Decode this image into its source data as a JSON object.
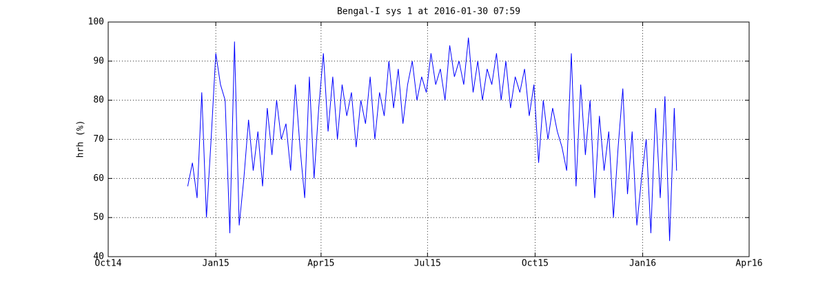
{
  "chart_data": {
    "type": "line",
    "title": "Bengal-I sys 1 at 2016-01-30 07:59",
    "y_label": "hrh (%)",
    "x": [
      "2014-12-08",
      "2014-12-12",
      "2014-12-16",
      "2014-12-20",
      "2014-12-24",
      "2014-12-28",
      "2015-01-01",
      "2015-01-05",
      "2015-01-09",
      "2015-01-13",
      "2015-01-17",
      "2015-01-21",
      "2015-01-25",
      "2015-01-29",
      "2015-02-02",
      "2015-02-06",
      "2015-02-10",
      "2015-02-14",
      "2015-02-18",
      "2015-02-22",
      "2015-02-26",
      "2015-03-02",
      "2015-03-06",
      "2015-03-10",
      "2015-03-14",
      "2015-03-18",
      "2015-03-22",
      "2015-03-26",
      "2015-03-30",
      "2015-04-03",
      "2015-04-07",
      "2015-04-11",
      "2015-04-15",
      "2015-04-19",
      "2015-04-23",
      "2015-04-27",
      "2015-05-01",
      "2015-05-05",
      "2015-05-09",
      "2015-05-13",
      "2015-05-17",
      "2015-05-21",
      "2015-05-25",
      "2015-05-29",
      "2015-06-02",
      "2015-06-06",
      "2015-06-10",
      "2015-06-14",
      "2015-06-18",
      "2015-06-22",
      "2015-06-26",
      "2015-06-30",
      "2015-07-04",
      "2015-07-08",
      "2015-07-12",
      "2015-07-16",
      "2015-07-20",
      "2015-07-24",
      "2015-07-28",
      "2015-08-01",
      "2015-08-05",
      "2015-08-09",
      "2015-08-13",
      "2015-08-17",
      "2015-08-21",
      "2015-08-25",
      "2015-08-29",
      "2015-09-02",
      "2015-09-06",
      "2015-09-10",
      "2015-09-14",
      "2015-09-18",
      "2015-09-22",
      "2015-09-26",
      "2015-09-30",
      "2015-10-04",
      "2015-10-08",
      "2015-10-12",
      "2015-10-16",
      "2015-10-20",
      "2015-10-24",
      "2015-10-28",
      "2015-11-01",
      "2015-11-05",
      "2015-11-09",
      "2015-11-13",
      "2015-11-17",
      "2015-11-21",
      "2015-11-25",
      "2015-11-29",
      "2015-12-03",
      "2015-12-07",
      "2015-12-11",
      "2015-12-15",
      "2015-12-19",
      "2015-12-23",
      "2015-12-27",
      "2015-12-31",
      "2016-01-04",
      "2016-01-08",
      "2016-01-12",
      "2016-01-16",
      "2016-01-20",
      "2016-01-24",
      "2016-01-28",
      "2016-01-30"
    ],
    "series": [
      {
        "name": "hrh",
        "color": "#0000ff",
        "values": [
          58,
          64,
          55,
          82,
          50,
          70,
          92,
          84,
          80,
          46,
          95,
          48,
          60,
          75,
          62,
          72,
          58,
          78,
          66,
          80,
          70,
          74,
          62,
          84,
          68,
          55,
          86,
          60,
          78,
          92,
          72,
          86,
          70,
          84,
          76,
          82,
          68,
          80,
          74,
          86,
          70,
          82,
          76,
          90,
          78,
          88,
          74,
          84,
          90,
          80,
          86,
          82,
          92,
          84,
          88,
          80,
          94,
          86,
          90,
          84,
          96,
          82,
          90,
          80,
          88,
          84,
          92,
          80,
          90,
          78,
          86,
          82,
          88,
          76,
          84,
          64,
          80,
          70,
          78,
          72,
          68,
          62,
          92,
          58,
          84,
          66,
          80,
          55,
          76,
          62,
          72,
          50,
          68,
          83,
          56,
          72,
          48,
          60,
          70,
          46,
          78,
          55,
          81,
          44,
          78,
          62
        ]
      }
    ],
    "xlim": [
      "2014-10-01",
      "2016-04-01"
    ],
    "xticks": [
      {
        "value": "2014-10-01",
        "label": "Oct14"
      },
      {
        "value": "2015-01-01",
        "label": "Jan15"
      },
      {
        "value": "2015-04-01",
        "label": "Apr15"
      },
      {
        "value": "2015-07-01",
        "label": "Jul15"
      },
      {
        "value": "2015-10-01",
        "label": "Oct15"
      },
      {
        "value": "2016-01-01",
        "label": "Jan16"
      },
      {
        "value": "2016-04-01",
        "label": "Apr16"
      }
    ],
    "ylim": [
      40,
      100
    ],
    "yticks": [
      40,
      50,
      60,
      70,
      80,
      90,
      100
    ],
    "grid": true
  }
}
